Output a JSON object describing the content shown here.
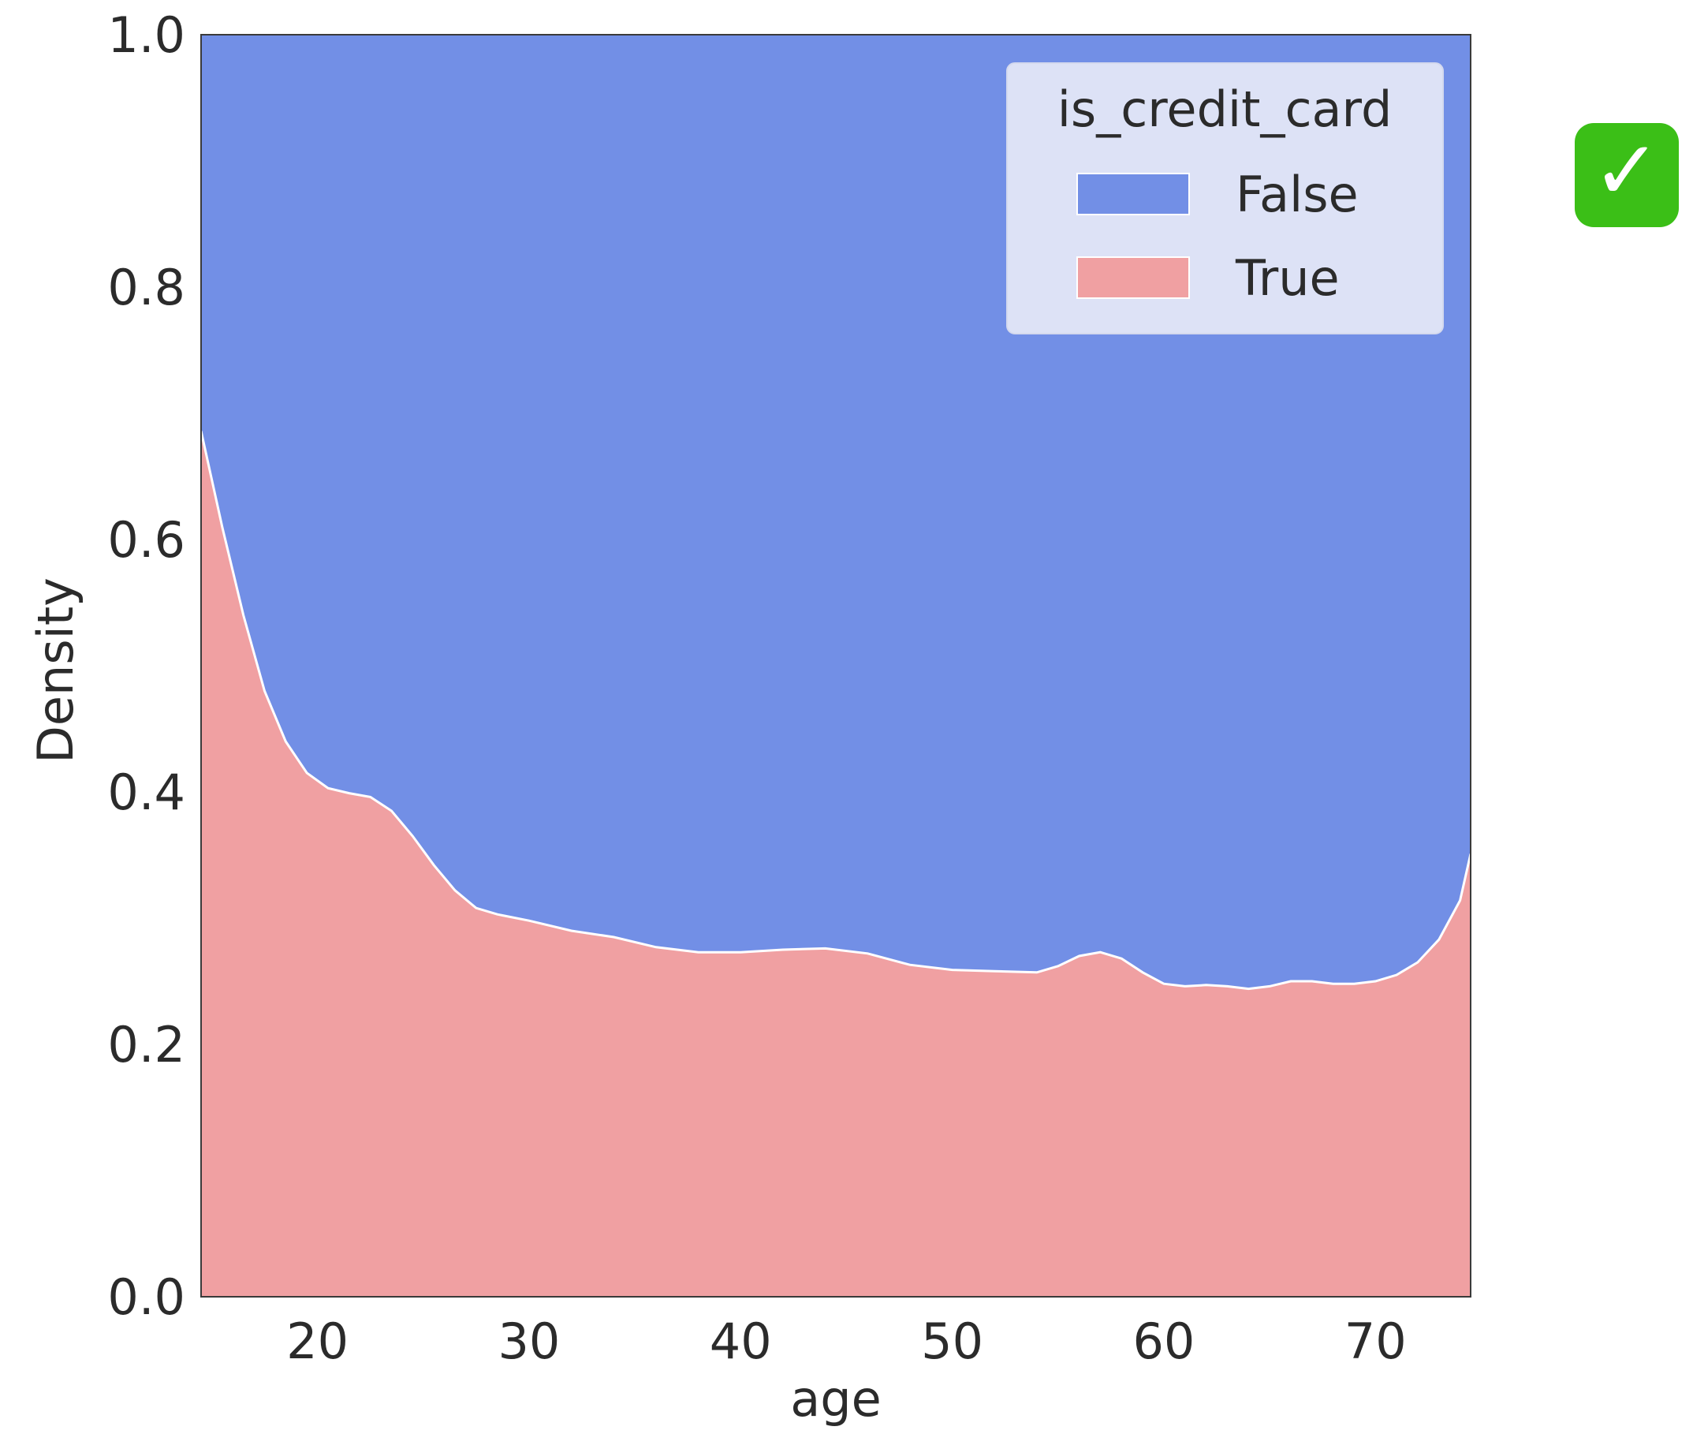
{
  "chart_data": {
    "type": "area",
    "stacked": "fill",
    "xlabel": "age",
    "ylabel": "Density",
    "xlim": [
      14.5,
      74.5
    ],
    "ylim": [
      0,
      1
    ],
    "x_ticks": [
      20,
      30,
      40,
      50,
      60,
      70
    ],
    "y_ticks": [
      0.0,
      0.2,
      0.4,
      0.6,
      0.8,
      1.0
    ],
    "x_tick_labels": [
      "20",
      "30",
      "40",
      "50",
      "60",
      "70"
    ],
    "y_tick_labels": [
      "0.0",
      "0.2",
      "0.4",
      "0.6",
      "0.8",
      "1.0"
    ],
    "grid": false,
    "legend": {
      "title": "is_credit_card",
      "placement": "top-right",
      "entries": [
        {
          "label": "False",
          "color": "#728FE6"
        },
        {
          "label": "True",
          "color": "#F0A0A2"
        }
      ]
    },
    "x": [
      14.5,
      15.5,
      16.5,
      17.5,
      18.5,
      19.5,
      20.5,
      21.5,
      22.5,
      23.5,
      24.5,
      25.5,
      26.5,
      27.5,
      28.5,
      30,
      32,
      34,
      36,
      38,
      40,
      42,
      44,
      46,
      48,
      50,
      52,
      54,
      55,
      56,
      57,
      58,
      59,
      60,
      61,
      62,
      63,
      64,
      65,
      66,
      67,
      68,
      69,
      70,
      71,
      72,
      73,
      74,
      74.5
    ],
    "series": [
      {
        "name": "True",
        "color": "#F0A0A2",
        "values": [
          0.686,
          0.61,
          0.54,
          0.48,
          0.44,
          0.415,
          0.403,
          0.399,
          0.396,
          0.385,
          0.365,
          0.342,
          0.322,
          0.308,
          0.303,
          0.298,
          0.29,
          0.285,
          0.277,
          0.273,
          0.273,
          0.275,
          0.276,
          0.272,
          0.263,
          0.259,
          0.258,
          0.257,
          0.262,
          0.27,
          0.273,
          0.268,
          0.257,
          0.248,
          0.246,
          0.247,
          0.246,
          0.244,
          0.246,
          0.25,
          0.25,
          0.248,
          0.248,
          0.25,
          0.255,
          0.265,
          0.283,
          0.314,
          0.351
        ]
      },
      {
        "name": "False",
        "color": "#728FE6",
        "values": [
          0.314,
          0.39,
          0.46,
          0.52,
          0.56,
          0.585,
          0.597,
          0.601,
          0.604,
          0.615,
          0.635,
          0.658,
          0.678,
          0.692,
          0.697,
          0.702,
          0.71,
          0.715,
          0.723,
          0.727,
          0.727,
          0.725,
          0.724,
          0.728,
          0.737,
          0.741,
          0.742,
          0.743,
          0.738,
          0.73,
          0.727,
          0.732,
          0.743,
          0.752,
          0.754,
          0.753,
          0.754,
          0.756,
          0.754,
          0.75,
          0.75,
          0.752,
          0.752,
          0.75,
          0.745,
          0.735,
          0.717,
          0.686,
          0.649
        ]
      }
    ]
  },
  "badge": {
    "icon": "check-mark-button-icon",
    "glyph": "✓",
    "color": "#3bbf17"
  }
}
